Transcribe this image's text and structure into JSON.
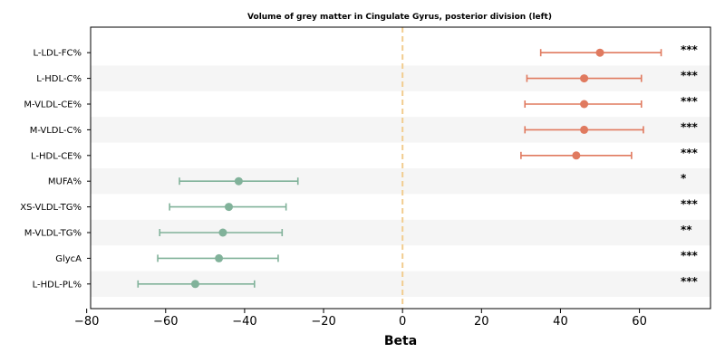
{
  "chart_data": {
    "type": "forest",
    "title": "Volume of grey matter in Cingulate Gyrus, posterior division (left)",
    "xlabel": "Beta",
    "xlim": [
      -79,
      78
    ],
    "xticks": [
      -80,
      -60,
      -40,
      -20,
      0,
      20,
      40,
      60
    ],
    "xtick_labels": [
      "−80",
      "−60",
      "−40",
      "−20",
      "0",
      "20",
      "40",
      "60"
    ],
    "reference_line": 0,
    "colors": {
      "positive": "#e07a5f",
      "negative": "#81b29a",
      "reference": "#f2cc8f",
      "stripe": "#f5f5f5"
    },
    "rows": [
      {
        "label": "L-LDL-FC%",
        "beta": 50,
        "lo": 35,
        "hi": 65.5,
        "sig": "***"
      },
      {
        "label": "L-HDL-C%",
        "beta": 46,
        "lo": 31.5,
        "hi": 60.5,
        "sig": "***"
      },
      {
        "label": "M-VLDL-CE%",
        "beta": 46,
        "lo": 31,
        "hi": 60.5,
        "sig": "***"
      },
      {
        "label": "M-VLDL-C%",
        "beta": 46,
        "lo": 31,
        "hi": 61,
        "sig": "***"
      },
      {
        "label": "L-HDL-CE%",
        "beta": 44,
        "lo": 30,
        "hi": 58,
        "sig": "***"
      },
      {
        "label": "MUFA%",
        "beta": -41.5,
        "lo": -56.5,
        "hi": -26.5,
        "sig": "*"
      },
      {
        "label": "XS-VLDL-TG%",
        "beta": -44,
        "lo": -59,
        "hi": -29.5,
        "sig": "***"
      },
      {
        "label": "M-VLDL-TG%",
        "beta": -45.5,
        "lo": -61.5,
        "hi": -30.5,
        "sig": "**"
      },
      {
        "label": "GlycA",
        "beta": -46.5,
        "lo": -62,
        "hi": -31.5,
        "sig": "***"
      },
      {
        "label": "L-HDL-PL%",
        "beta": -52.5,
        "lo": -67,
        "hi": -37.5,
        "sig": "***"
      }
    ]
  }
}
